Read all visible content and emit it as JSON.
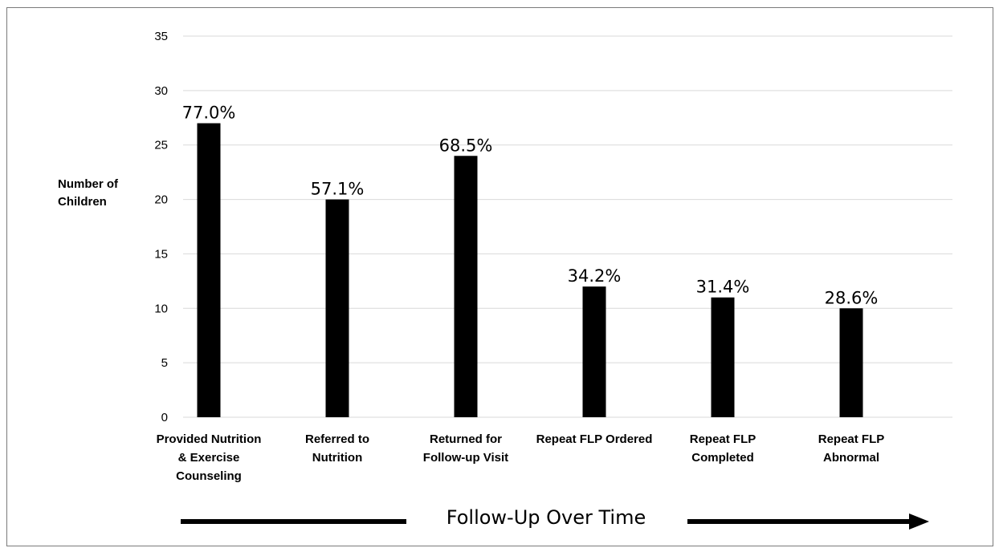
{
  "chart_data": {
    "type": "bar",
    "ylabel": "Number of\nChildren",
    "xlabel": "Follow-Up Over Time",
    "ylim": [
      0,
      35
    ],
    "yticks": [
      0,
      5,
      10,
      15,
      20,
      25,
      30,
      35
    ],
    "grid": true,
    "legend": "none",
    "bar_color": "#000000",
    "grid_color": "#d9d9d9",
    "categories": [
      "Provided Nutrition\n& Exercise\nCounseling",
      "Referred to\nNutrition",
      "Returned for\nFollow-up Visit",
      "Repeat FLP Ordered",
      "Repeat FLP\nCompleted",
      "Repeat FLP\nAbnormal"
    ],
    "values": [
      27,
      20,
      24,
      12,
      11,
      10
    ],
    "data_labels": [
      "77.0%",
      "57.1%",
      "68.5%",
      "34.2%",
      "31.4%",
      "28.6%"
    ]
  }
}
